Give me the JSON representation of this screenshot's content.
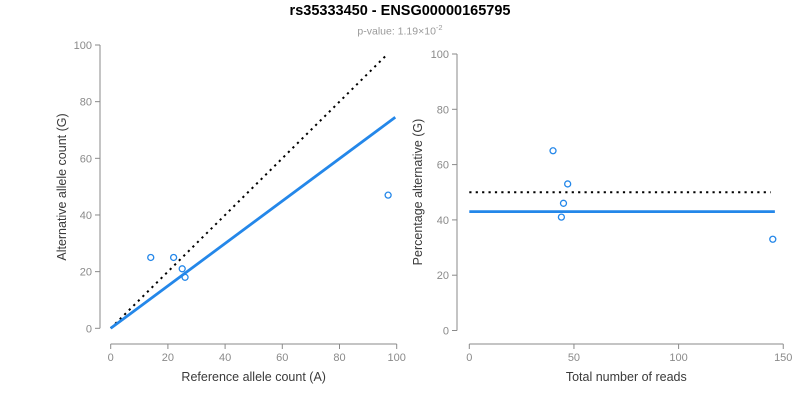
{
  "header": {
    "title": "rs35333450 - ENSG00000165795",
    "subtitle_prefix": "p-value: 1.19×10",
    "subtitle_exponent": "-2"
  },
  "accent_color": "#2487E9",
  "chart_data": [
    {
      "type": "scatter",
      "xlabel": "Reference allele count (A)",
      "ylabel": "Alternative allele count (G)",
      "xlim": [
        0,
        100
      ],
      "ylim": [
        0,
        100
      ],
      "xticks": [
        0,
        20,
        40,
        60,
        80,
        100
      ],
      "yticks": [
        0,
        20,
        40,
        60,
        80,
        100
      ],
      "grid": false,
      "points": [
        [
          14,
          25
        ],
        [
          22,
          25
        ],
        [
          25,
          21
        ],
        [
          26,
          18
        ],
        [
          97,
          47
        ]
      ],
      "lines": [
        {
          "name": "identity-line",
          "style": "dotted",
          "color": "#000000",
          "from": [
            0,
            0
          ],
          "to": [
            96.5,
            96.5
          ]
        },
        {
          "name": "fit-line",
          "style": "solid",
          "color": "#2487E9",
          "from": [
            0,
            0
          ],
          "to": [
            99.5,
            74.5
          ]
        }
      ]
    },
    {
      "type": "scatter",
      "xlabel": "Total number of reads",
      "ylabel": "Percentage alternative (G)",
      "xlim": [
        0,
        150
      ],
      "ylim": [
        0,
        100
      ],
      "xticks": [
        0,
        50,
        100,
        150
      ],
      "yticks": [
        0,
        20,
        40,
        60,
        80,
        100
      ],
      "grid": false,
      "points": [
        [
          40,
          65
        ],
        [
          47,
          53
        ],
        [
          45,
          46
        ],
        [
          44,
          41
        ],
        [
          145,
          33
        ]
      ],
      "lines": [
        {
          "name": "expected-50pct-line",
          "style": "dotted",
          "color": "#000000",
          "from": [
            0,
            50
          ],
          "to": [
            144,
            50
          ]
        },
        {
          "name": "mean-ratio-line",
          "style": "solid",
          "color": "#2487E9",
          "from": [
            0,
            43
          ],
          "to": [
            146,
            43
          ]
        }
      ]
    }
  ]
}
